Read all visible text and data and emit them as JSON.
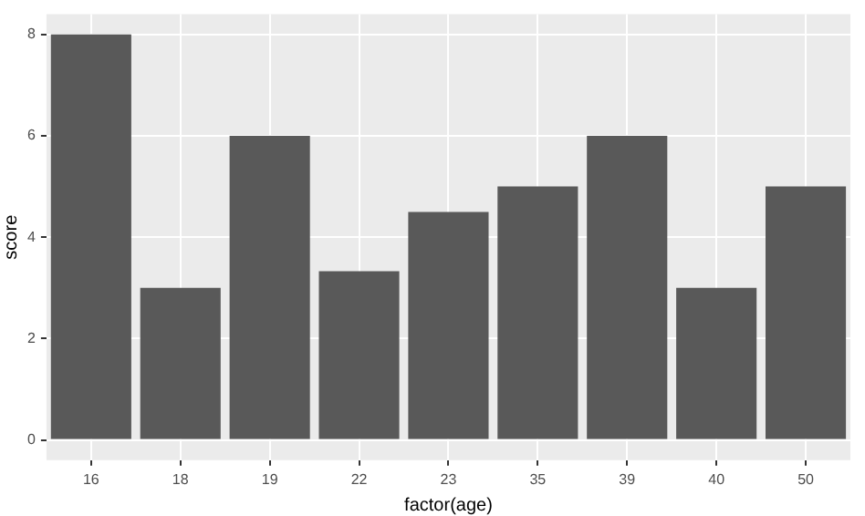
{
  "chart_data": {
    "type": "bar",
    "xlabel": "factor(age)",
    "ylabel": "score",
    "categories": [
      "16",
      "18",
      "19",
      "22",
      "23",
      "35",
      "39",
      "40",
      "50"
    ],
    "values": [
      8,
      3,
      6,
      3.33,
      4.5,
      5,
      6,
      3,
      5
    ],
    "color": "#595959",
    "ylim": [
      -0.4,
      8.4
    ],
    "yticks": [
      0,
      2,
      4,
      6,
      8
    ],
    "grid": true
  }
}
